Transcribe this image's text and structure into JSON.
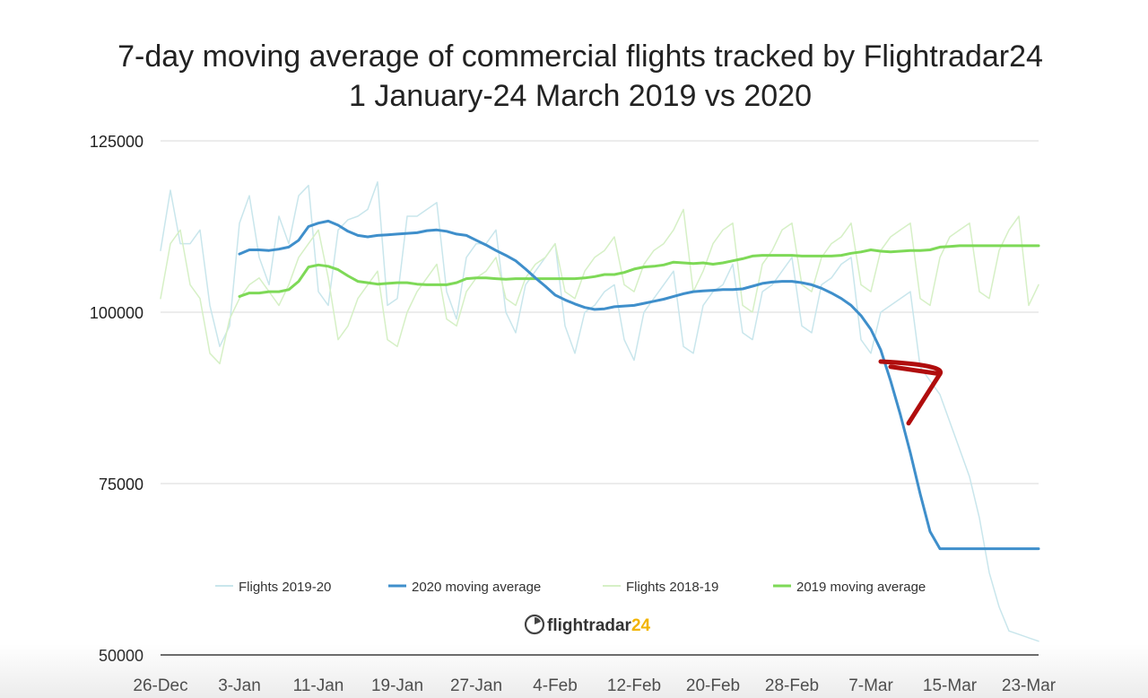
{
  "chart_data": {
    "type": "line",
    "title": "7-day moving average of commercial flights tracked by Flightradar24",
    "subtitle": "1 January-24 March 2019 vs 2020",
    "x_tick_labels": [
      "26-Dec",
      "3-Jan",
      "11-Jan",
      "19-Jan",
      "27-Jan",
      "4-Feb",
      "12-Feb",
      "20-Feb",
      "28-Feb",
      "7-Mar",
      "15-Mar",
      "23-Mar"
    ],
    "x_ticks_day": [
      0,
      8,
      16,
      24,
      32,
      40,
      48,
      56,
      64,
      72,
      80,
      88
    ],
    "x_unit": "days since 26-Dec",
    "xlim": [
      0,
      89
    ],
    "ylim": [
      50000,
      125000
    ],
    "y_ticks": [
      50000,
      75000,
      100000,
      125000
    ],
    "y_tick_labels": [
      "50000",
      "75000",
      "100000",
      "125000"
    ],
    "grid": true,
    "legend_position": "bottom-center",
    "series": [
      {
        "name": "Flights 2019-20",
        "color": "#c9e6ec",
        "style": "thin",
        "x": [
          0,
          1,
          2,
          3,
          4,
          5,
          6,
          7,
          8,
          9,
          10,
          11,
          12,
          13,
          14,
          15,
          16,
          17,
          18,
          19,
          20,
          21,
          22,
          23,
          24,
          25,
          26,
          27,
          28,
          29,
          30,
          31,
          32,
          33,
          34,
          35,
          36,
          37,
          38,
          39,
          40,
          41,
          42,
          43,
          44,
          45,
          46,
          47,
          48,
          49,
          50,
          51,
          52,
          53,
          54,
          55,
          56,
          57,
          58,
          59,
          60,
          61,
          62,
          63,
          64,
          65,
          66,
          67,
          68,
          69,
          70,
          71,
          72,
          73,
          74,
          75,
          76,
          77,
          78,
          79,
          80,
          81,
          82,
          83,
          84,
          85,
          86,
          87,
          88,
          89
        ],
        "values": [
          109000,
          117800,
          110000,
          110000,
          112000,
          101000,
          95000,
          98000,
          113000,
          117000,
          108000,
          104000,
          114000,
          110000,
          117000,
          118500,
          103000,
          101000,
          112000,
          113500,
          114000,
          115000,
          119000,
          101000,
          102000,
          114000,
          114000,
          115000,
          116000,
          103000,
          99000,
          108000,
          110000,
          110000,
          112000,
          100000,
          97000,
          104000,
          106000,
          108000,
          110000,
          98000,
          94000,
          100000,
          101000,
          103000,
          104000,
          96000,
          93000,
          100000,
          102000,
          104000,
          106000,
          95000,
          94000,
          101000,
          103000,
          104000,
          107000,
          97000,
          96000,
          103000,
          104000,
          106000,
          108000,
          98000,
          97000,
          104000,
          105000,
          107000,
          108000,
          96000,
          94000,
          100000,
          101000,
          102000,
          103000,
          92000,
          90000,
          88000,
          84000,
          80000,
          76000,
          70000,
          62000,
          57000,
          53500,
          53000,
          52500,
          52000
        ]
      },
      {
        "name": "2020 moving average",
        "color": "#3f8fcb",
        "style": "thick",
        "x": [
          8,
          9,
          10,
          11,
          12,
          13,
          14,
          15,
          16,
          17,
          18,
          19,
          20,
          21,
          22,
          23,
          24,
          25,
          26,
          27,
          28,
          29,
          30,
          31,
          32,
          33,
          34,
          35,
          36,
          37,
          38,
          39,
          40,
          41,
          42,
          43,
          44,
          45,
          46,
          47,
          48,
          49,
          50,
          51,
          52,
          53,
          54,
          55,
          56,
          57,
          58,
          59,
          60,
          61,
          62,
          63,
          64,
          65,
          66,
          67,
          68,
          69,
          70,
          71,
          72,
          73,
          74,
          75,
          76,
          77,
          78,
          79,
          80,
          81,
          82,
          83,
          84,
          85,
          86,
          87,
          88,
          89
        ],
        "values": [
          108500,
          109100,
          109100,
          109000,
          109200,
          109500,
          110500,
          112500,
          113000,
          113300,
          112700,
          111800,
          111200,
          111000,
          111200,
          111300,
          111400,
          111500,
          111600,
          111900,
          112000,
          111800,
          111400,
          111200,
          110500,
          109800,
          109000,
          108300,
          107500,
          106300,
          105000,
          103800,
          102500,
          101800,
          101200,
          100700,
          100400,
          100500,
          100800,
          100900,
          101000,
          101300,
          101600,
          101900,
          102300,
          102700,
          103000,
          103100,
          103200,
          103300,
          103300,
          103400,
          103800,
          104200,
          104400,
          104500,
          104500,
          104300,
          104000,
          103500,
          102800,
          102000,
          101000,
          99500,
          97500,
          94500,
          90000,
          85000,
          79500,
          73500,
          68000,
          65500,
          65500,
          65500,
          65500,
          65500,
          65500,
          65500,
          65500,
          65500,
          65500,
          65500
        ]
      },
      {
        "name": "Flights 2018-19",
        "color": "#d6f0c6",
        "style": "thin",
        "x": [
          0,
          1,
          2,
          3,
          4,
          5,
          6,
          7,
          8,
          9,
          10,
          11,
          12,
          13,
          14,
          15,
          16,
          17,
          18,
          19,
          20,
          21,
          22,
          23,
          24,
          25,
          26,
          27,
          28,
          29,
          30,
          31,
          32,
          33,
          34,
          35,
          36,
          37,
          38,
          39,
          40,
          41,
          42,
          43,
          44,
          45,
          46,
          47,
          48,
          49,
          50,
          51,
          52,
          53,
          54,
          55,
          56,
          57,
          58,
          59,
          60,
          61,
          62,
          63,
          64,
          65,
          66,
          67,
          68,
          69,
          70,
          71,
          72,
          73,
          74,
          75,
          76,
          77,
          78,
          79,
          80,
          81,
          82,
          83,
          84,
          85,
          86,
          87,
          88,
          89
        ],
        "values": [
          102000,
          110000,
          112000,
          104000,
          102000,
          94000,
          92500,
          99000,
          102000,
          104000,
          105000,
          103000,
          101000,
          104000,
          108000,
          110000,
          112000,
          105000,
          96000,
          98000,
          102000,
          104000,
          106000,
          96000,
          95000,
          100000,
          103000,
          105000,
          107000,
          99000,
          98000,
          103000,
          105000,
          106000,
          108000,
          102000,
          101000,
          105000,
          107000,
          108000,
          110000,
          103000,
          102000,
          106000,
          108000,
          109000,
          111000,
          104000,
          103000,
          107000,
          109000,
          110000,
          112000,
          115000,
          103000,
          106000,
          110000,
          112000,
          113000,
          101000,
          100000,
          107000,
          109000,
          112000,
          113000,
          104000,
          103000,
          108000,
          110000,
          111000,
          113000,
          104000,
          103000,
          109000,
          111000,
          112000,
          113000,
          102000,
          101000,
          108000,
          111000,
          112000,
          113000,
          103000,
          102000,
          109000,
          112000,
          114000,
          101000,
          104000
        ]
      },
      {
        "name": "2019 moving average",
        "color": "#7ed957",
        "style": "thick",
        "x": [
          8,
          9,
          10,
          11,
          12,
          13,
          14,
          15,
          16,
          17,
          18,
          19,
          20,
          21,
          22,
          23,
          24,
          25,
          26,
          27,
          28,
          29,
          30,
          31,
          32,
          33,
          34,
          35,
          36,
          37,
          38,
          39,
          40,
          41,
          42,
          43,
          44,
          45,
          46,
          47,
          48,
          49,
          50,
          51,
          52,
          53,
          54,
          55,
          56,
          57,
          58,
          59,
          60,
          61,
          62,
          63,
          64,
          65,
          66,
          67,
          68,
          69,
          70,
          71,
          72,
          73,
          74,
          75,
          76,
          77,
          78,
          79,
          80,
          81,
          82,
          83,
          84,
          85,
          86,
          87,
          88,
          89
        ],
        "values": [
          102300,
          102800,
          102800,
          103000,
          103000,
          103300,
          104500,
          106600,
          106900,
          106700,
          106200,
          105300,
          104500,
          104300,
          104100,
          104200,
          104300,
          104300,
          104100,
          104000,
          104000,
          104000,
          104300,
          104900,
          105000,
          105000,
          104900,
          104800,
          104900,
          104900,
          104900,
          104900,
          104900,
          104900,
          104900,
          105000,
          105200,
          105500,
          105500,
          105800,
          106300,
          106600,
          106700,
          106900,
          107300,
          107200,
          107100,
          107200,
          107000,
          107200,
          107500,
          107800,
          108200,
          108300,
          108300,
          108300,
          108300,
          108200,
          108200,
          108200,
          108200,
          108300,
          108600,
          108800,
          109100,
          108900,
          108800,
          108900,
          109000,
          109000,
          109100,
          109500,
          109600,
          109700,
          109700,
          109700,
          109700,
          109700,
          109700,
          109700,
          109700,
          109700
        ]
      }
    ],
    "annotations": [
      {
        "type": "arrow",
        "color": "#b00d0d",
        "from_day": 73,
        "from_value": 92800,
        "to_day": 79,
        "to_value": 91000
      }
    ]
  },
  "brand": {
    "name": "flightradar",
    "number": "24",
    "accent": "#f2b400"
  }
}
